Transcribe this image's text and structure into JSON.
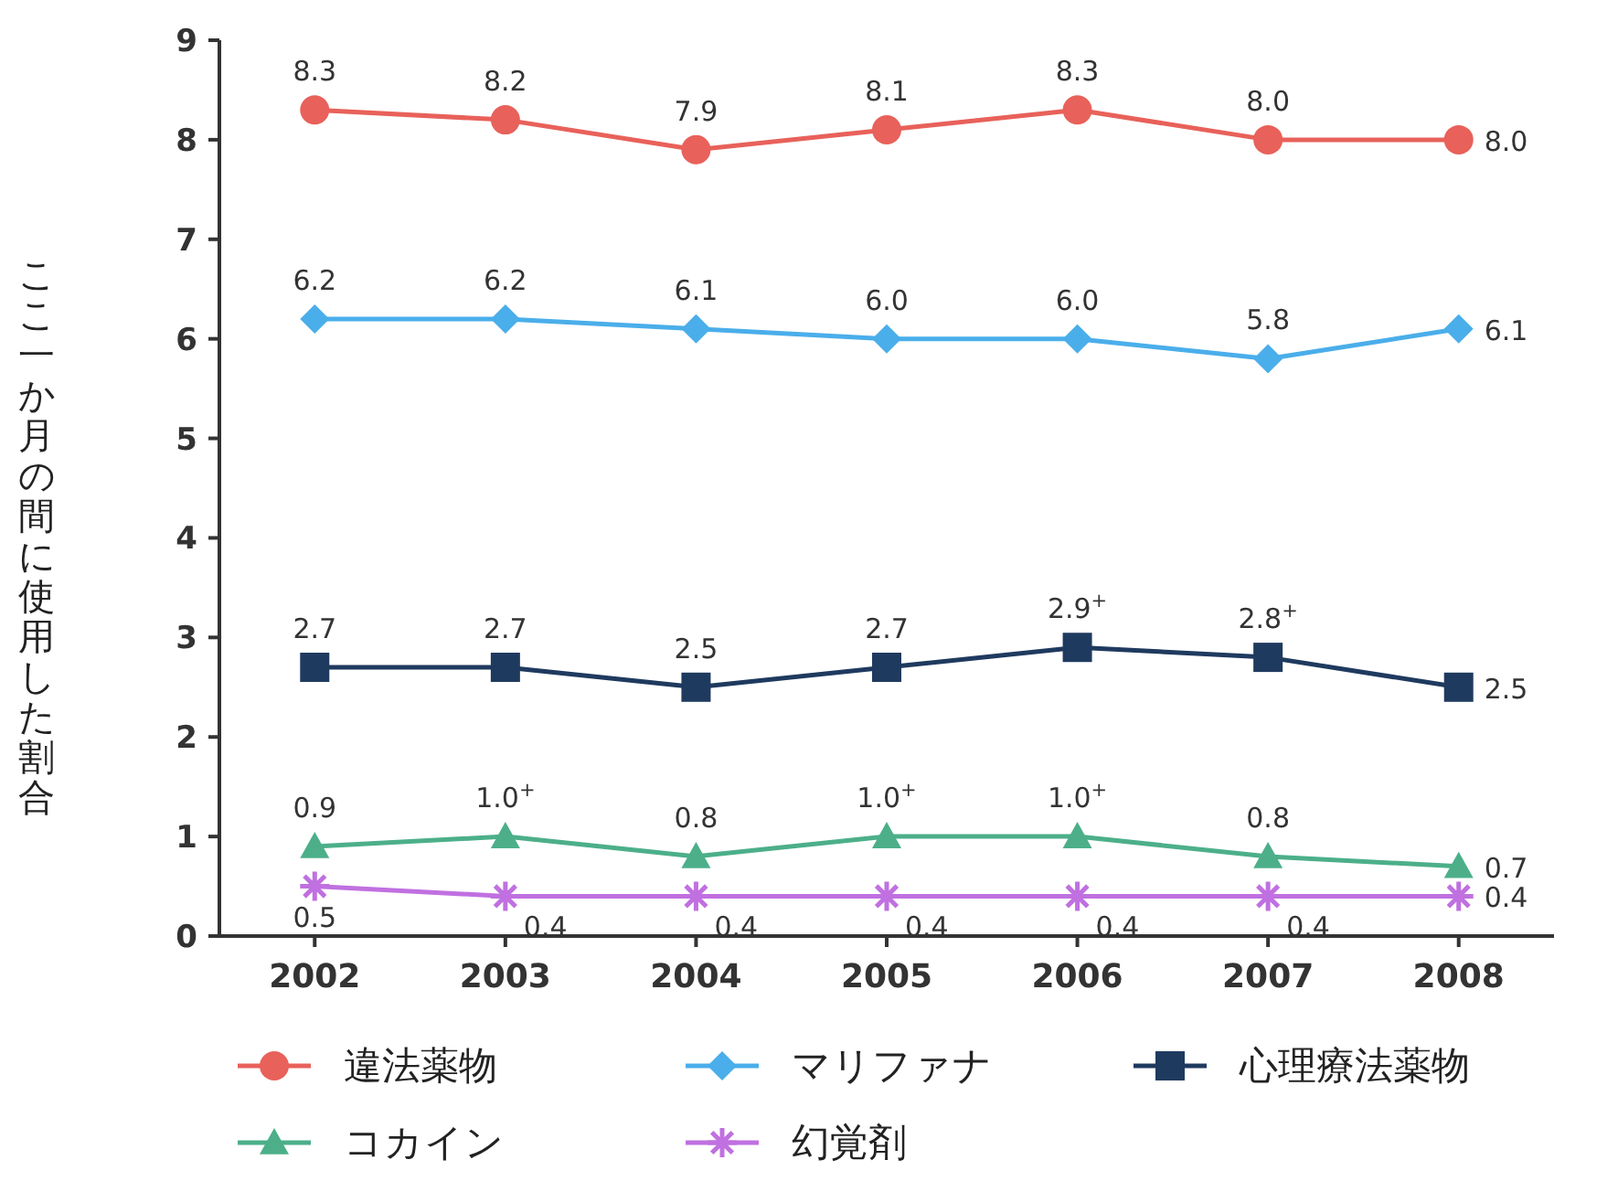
{
  "chart_data": {
    "type": "line",
    "ylabel": "ここ一か月の間に使用した割合",
    "categories": [
      "2002",
      "2003",
      "2004",
      "2005",
      "2006",
      "2007",
      "2008"
    ],
    "ylim": [
      0,
      9
    ],
    "yticks": [
      0,
      1,
      2,
      3,
      4,
      5,
      6,
      7,
      8,
      9
    ],
    "grid": false,
    "legend": "bottom",
    "line_style": "solid",
    "series": [
      {
        "name": "違法薬物",
        "color": "#e8615a",
        "marker": "circle",
        "values": [
          8.3,
          8.2,
          7.9,
          8.1,
          8.3,
          8.0,
          8.0
        ],
        "value_labels": [
          "8.3",
          "8.2",
          "7.9",
          "8.1",
          "8.3",
          "8.0",
          "8.0"
        ]
      },
      {
        "name": "マリファナ",
        "color": "#4aaeea",
        "marker": "diamond",
        "values": [
          6.2,
          6.2,
          6.1,
          6.0,
          6.0,
          5.8,
          6.1
        ],
        "value_labels": [
          "6.2",
          "6.2",
          "6.1",
          "6.0",
          "6.0",
          "5.8",
          "6.1"
        ]
      },
      {
        "name": "心理療法薬物",
        "color": "#1f3a5f",
        "marker": "square",
        "values": [
          2.7,
          2.7,
          2.5,
          2.7,
          2.9,
          2.8,
          2.5
        ],
        "value_labels": [
          "2.7",
          "2.7",
          "2.5",
          "2.7",
          "2.9$^{+}$",
          "2.8$^{+}$",
          "2.5"
        ]
      },
      {
        "name": "コカイン",
        "color": "#4caf8a",
        "marker": "triangle",
        "values": [
          0.9,
          1.0,
          0.8,
          1.0,
          1.0,
          0.8,
          0.7
        ],
        "value_labels": [
          "0.9",
          "1.0$^{+}$",
          "0.8",
          "1.0$^{+}$",
          "1.0$^{+}$",
          "0.8",
          "0.7"
        ]
      },
      {
        "name": "幻覚剤",
        "color": "#c070e0",
        "marker": "cross",
        "values": [
          0.5,
          0.4,
          0.4,
          0.4,
          0.4,
          0.4,
          0.4
        ],
        "value_labels": [
          "0.5",
          "0.4",
          "0.4",
          "0.4",
          "0.4",
          "0.4",
          "0.4"
        ]
      }
    ]
  }
}
